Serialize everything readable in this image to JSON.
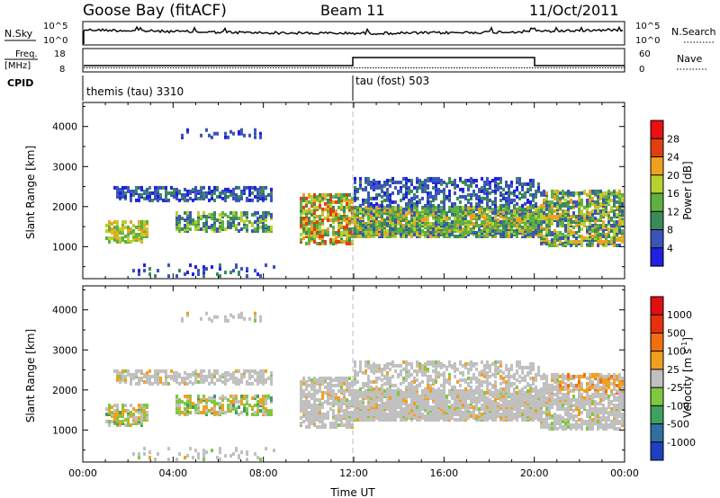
{
  "header": {
    "station": "Goose Bay (fitACF)",
    "beam": "Beam 11",
    "date": "11/Oct/2011"
  },
  "strip": {
    "nsky_label": "N.Sky",
    "nsky_ticks": [
      "10^5",
      "10^0"
    ],
    "nsearch_label": "N.Search",
    "nsearch_ticks": [
      "10^5",
      "10^0"
    ],
    "freq_label": "Freq.",
    "freq_unit": "[MHz]",
    "freq_ticks": [
      18,
      8
    ],
    "nave_label": "Nave",
    "nave_ticks": [
      60,
      0
    ],
    "cpid_label": "CPID",
    "cpid_segments": [
      {
        "label": "themis (tau) 3310",
        "start_hour": 0
      },
      {
        "label": "tau (fost) 503",
        "start_hour": 12
      }
    ]
  },
  "chart_data": [
    {
      "type": "heatmap",
      "name": "power",
      "ylabel": "Slant Range [km]",
      "yticks": [
        1000,
        2000,
        3000,
        4000
      ],
      "ylim": [
        200,
        4600
      ],
      "xlim": [
        0,
        24
      ],
      "colorbar": {
        "label": "Power [dB]",
        "ticks": [
          "4",
          "8",
          "12",
          "16",
          "20",
          "24",
          "28"
        ],
        "colors": [
          "#2020e0",
          "#3a54b8",
          "#3a8a5a",
          "#60b040",
          "#b8d030",
          "#f0a020",
          "#e04010",
          "#e81010"
        ]
      },
      "echo_regions_approx": [
        {
          "x": [
            0.9,
            2.8
          ],
          "range_km": [
            1100,
            1650
          ],
          "level_db": 16
        },
        {
          "x": [
            1.3,
            8.3
          ],
          "range_km": [
            2100,
            2500
          ],
          "level_db": 8
        },
        {
          "x": [
            4.0,
            8.3
          ],
          "range_km": [
            1400,
            1800
          ],
          "level_db": 12
        },
        {
          "x": [
            9.6,
            24.0
          ],
          "range_km": [
            1100,
            2300
          ],
          "level_db": 18
        },
        {
          "x": [
            4.3,
            8.1
          ],
          "range_km": [
            3700,
            4300
          ],
          "level_db": 6
        },
        {
          "x": [
            2.0,
            9.0
          ],
          "range_km": [
            200,
            600
          ],
          "level_db": 6
        }
      ]
    },
    {
      "type": "heatmap",
      "name": "velocity",
      "ylabel": "Slant Range [km]",
      "yticks": [
        1000,
        2000,
        3000,
        4000
      ],
      "ylim": [
        200,
        4600
      ],
      "xlim": [
        0,
        24
      ],
      "colorbar": {
        "label": "Velocity [m s^-1]",
        "ticks": [
          "1000",
          "500",
          "100",
          "25",
          "-25",
          "-100",
          "-500",
          "-1000"
        ],
        "colors": [
          "#2040c0",
          "#3070a0",
          "#40a060",
          "#80c840",
          "#c0c0c0",
          "#f0a020",
          "#f07010",
          "#e83010",
          "#e01010"
        ]
      },
      "xlabel": "Time UT",
      "xticks": [
        "00:00",
        "04:00",
        "08:00",
        "12:00",
        "16:00",
        "20:00",
        "00:00"
      ]
    }
  ]
}
